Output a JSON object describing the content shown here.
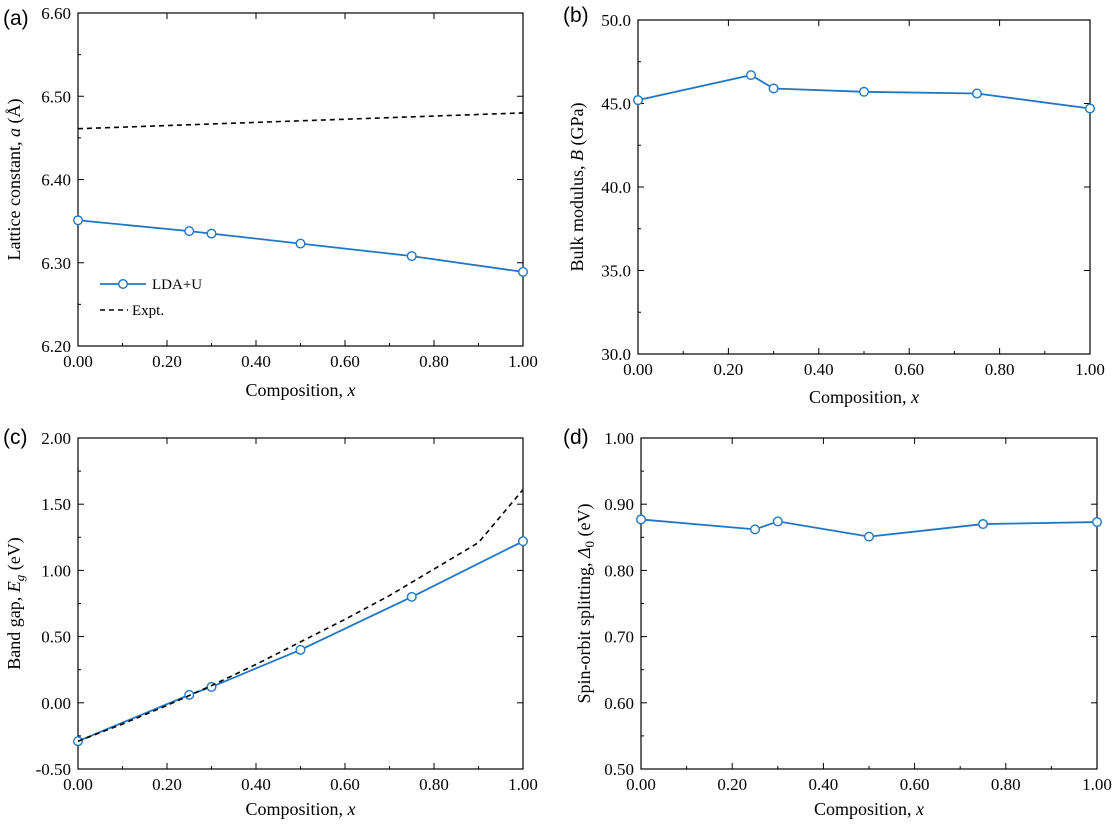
{
  "figure": {
    "panels": [
      "(a)",
      "(b)",
      "(c)",
      "(d)"
    ]
  },
  "colors": {
    "series": "#1f77c4",
    "expt": "#000000",
    "axis": "#000000"
  },
  "chart_data": [
    {
      "id": "a",
      "panel_label": "(a)",
      "type": "line",
      "xlabel": "Composition, x",
      "ylabel": "Lattice constant, a (Å)",
      "xlim": [
        0,
        1
      ],
      "ylim": [
        6.2,
        6.6
      ],
      "xticks": [
        "0.00",
        "0.20",
        "0.40",
        "0.60",
        "0.80",
        "1.00"
      ],
      "yticks": [
        "6.20",
        "6.30",
        "6.40",
        "6.50",
        "6.60"
      ],
      "legend": {
        "position": "bottom-left",
        "entries": [
          "LDA+U",
          "Expt."
        ]
      },
      "series": [
        {
          "name": "LDA+U",
          "style": "solid-marker",
          "x": [
            0.0,
            0.25,
            0.3,
            0.5,
            0.75,
            1.0
          ],
          "y": [
            6.351,
            6.338,
            6.335,
            6.323,
            6.308,
            6.289
          ]
        },
        {
          "name": "Expt.",
          "style": "dashed",
          "x": [
            0.0,
            1.0
          ],
          "y": [
            6.461,
            6.48
          ]
        }
      ]
    },
    {
      "id": "b",
      "panel_label": "(b)",
      "type": "line",
      "xlabel": "Composition, x",
      "ylabel": "Bulk modulus, B (GPa)",
      "xlim": [
        0,
        1
      ],
      "ylim": [
        30,
        50
      ],
      "xticks": [
        "0.00",
        "0.20",
        "0.40",
        "0.60",
        "0.80",
        "1.00"
      ],
      "yticks": [
        "30.0",
        "35.0",
        "40.0",
        "45.0",
        "50.0"
      ],
      "series": [
        {
          "style": "solid-marker",
          "x": [
            0.0,
            0.25,
            0.3,
            0.5,
            0.75,
            1.0
          ],
          "y": [
            45.2,
            46.7,
            45.9,
            45.7,
            45.6,
            44.7
          ]
        }
      ]
    },
    {
      "id": "c",
      "panel_label": "(c)",
      "type": "line",
      "xlabel": "Composition, x",
      "ylabel": "Band gap, Eg (eV)",
      "xlim": [
        0,
        1
      ],
      "ylim": [
        -0.5,
        2.0
      ],
      "xticks": [
        "0.00",
        "0.20",
        "0.40",
        "0.60",
        "0.80",
        "1.00"
      ],
      "yticks": [
        "-0.50",
        "0.00",
        "0.50",
        "1.00",
        "1.50",
        "2.00"
      ],
      "series": [
        {
          "name": "LDA+U",
          "style": "solid-marker",
          "x": [
            0.0,
            0.25,
            0.3,
            0.5,
            0.75,
            1.0
          ],
          "y": [
            -0.29,
            0.06,
            0.12,
            0.4,
            0.8,
            1.22
          ]
        },
        {
          "name": "Expt.",
          "style": "dashed",
          "x": [
            0.0,
            0.1,
            0.2,
            0.3,
            0.4,
            0.5,
            0.6,
            0.7,
            0.8,
            0.9,
            1.0
          ],
          "y": [
            -0.29,
            -0.16,
            -0.02,
            0.13,
            0.29,
            0.46,
            0.63,
            0.81,
            1.01,
            1.21,
            1.61
          ]
        }
      ]
    },
    {
      "id": "d",
      "panel_label": "(d)",
      "type": "line",
      "xlabel": "Composition, x",
      "ylabel": "Spin-orbit splitting, Δ0 (eV)",
      "xlim": [
        0,
        1
      ],
      "ylim": [
        0.5,
        1.0
      ],
      "xticks": [
        "0.00",
        "0.20",
        "0.40",
        "0.60",
        "0.80",
        "1.00"
      ],
      "yticks": [
        "0.50",
        "0.60",
        "0.70",
        "0.80",
        "0.90",
        "1.00"
      ],
      "series": [
        {
          "style": "solid-marker",
          "x": [
            0.0,
            0.25,
            0.3,
            0.5,
            0.75,
            1.0
          ],
          "y": [
            0.877,
            0.862,
            0.874,
            0.851,
            0.87,
            0.873
          ]
        }
      ]
    }
  ]
}
